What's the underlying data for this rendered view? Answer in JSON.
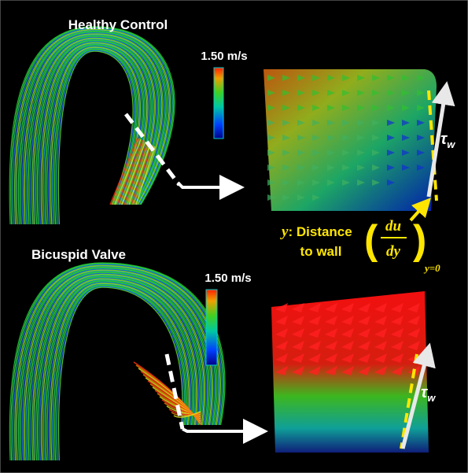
{
  "panels": [
    {
      "title": "Healthy Control",
      "colorbar_label": "1.50 m/s",
      "shear_symbol": "τ",
      "shear_subscript": "w"
    },
    {
      "title": "Bicuspid Valve",
      "colorbar_label": "1.50 m/s",
      "shear_symbol": "τ",
      "shear_subscript": "w"
    }
  ],
  "annotation": {
    "variable": "y",
    "line1": ": Distance",
    "line2": "to wall"
  },
  "formula": {
    "numerator": "du",
    "denominator": "dy",
    "subscript": "y=0"
  }
}
